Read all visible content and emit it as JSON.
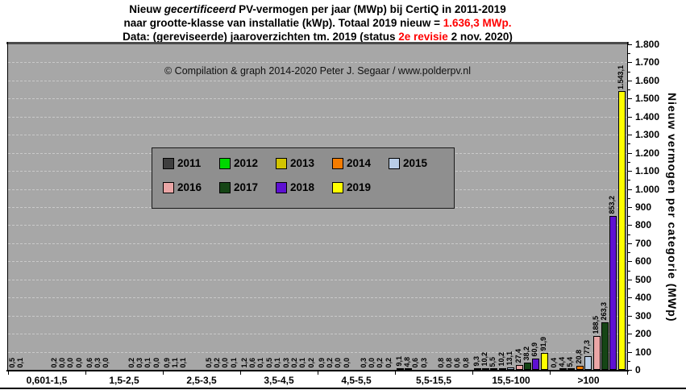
{
  "title": {
    "line1_pre": "Nieuw ",
    "line1_italic": "gecertificeerd",
    "line1_post": " PV-vermogen per jaar (MWp) bij CertiQ in 2011-2019",
    "line2_pre": "naar grootte-klasse van installatie (kWp). Totaal 2019 nieuw = ",
    "line2_red": "1.636,3 MWp.",
    "line3_pre": "Data: (gereviseerde) jaaroverzichten tm. 2019 (status ",
    "line3_red": "2e revisie",
    "line3_post": " 2 nov. 2020)"
  },
  "copyright": "© Compilation  & graph 2014-2020 Peter J. Segaar / www.polderpv.nl",
  "chart_data": {
    "type": "bar",
    "title": "Nieuw gecertificeerd PV-vermogen per jaar (MWp) bij CertiQ in 2011-2019 naar grootte-klasse van installatie (kWp)",
    "categories": [
      "0,601-1,5",
      "1,5-2,5",
      "2,5-3,5",
      "3,5-4,5",
      "4,5-5,5",
      "5,5-15,5",
      "15,5-100",
      ">100"
    ],
    "xlabel": "",
    "ylabel": "Nieuw vermogen per categorie (MWp)",
    "ylim": [
      0,
      1800
    ],
    "ytick_step": 100,
    "ytick_labels": [
      "0",
      "100",
      "200",
      "300",
      "400",
      "500",
      "600",
      "700",
      "800",
      "900",
      "1.000",
      "1.100",
      "1.200",
      "1.300",
      "1.400",
      "1.500",
      "1.600",
      "1.700",
      "1.800"
    ],
    "grid": "horizontal dashed every 100 MWp",
    "legend_position": "inside upper-left, boxed, two rows",
    "series": [
      {
        "name": "2011",
        "color": "#3f3f3f",
        "values": [
          0.5,
          0.6,
          0.9,
          1.2,
          0.9,
          9.1,
          9.3,
          0.4
        ],
        "labels": [
          "0,5",
          "0,6",
          "0,9",
          "1,2",
          "0,9",
          "9,1",
          "9,3",
          "0,4"
        ]
      },
      {
        "name": "2012",
        "color": "#00d800",
        "values": [
          0.1,
          0.3,
          1.1,
          0.6,
          0.2,
          4.8,
          10.2,
          4.4
        ],
        "labels": [
          "0,1",
          "0,3",
          "1,1",
          "0,6",
          "0,2",
          "4,8",
          "10,2",
          "4,4"
        ]
      },
      {
        "name": "2013",
        "color": "#d2c400",
        "values": [
          null,
          0.0,
          0.1,
          0.1,
          0.0,
          0.6,
          5.5,
          5.4
        ],
        "labels": [
          null,
          "0,0",
          "0,1",
          "0,1",
          "0,0",
          "0,6",
          "5,5",
          "5,4"
        ]
      },
      {
        "name": "2014",
        "color": "#f57c00",
        "values": [
          null,
          null,
          null,
          0.5,
          0.0,
          0.3,
          10.2,
          20.8
        ],
        "labels": [
          null,
          null,
          null,
          "0,5",
          "0,0",
          "0,3",
          "10,2",
          "20,8"
        ]
      },
      {
        "name": "2015",
        "color": "#b9cde6",
        "values": [
          null,
          null,
          null,
          0.1,
          null,
          null,
          13.1,
          77.3
        ],
        "labels": [
          null,
          null,
          null,
          "0,1",
          null,
          null,
          "13,1",
          "77,3"
        ]
      },
      {
        "name": "2016",
        "color": "#eba6a6",
        "values": [
          0.2,
          0.2,
          0.5,
          0.3,
          0.3,
          0.8,
          27.4,
          188.5
        ],
        "labels": [
          "0,2",
          "0,2",
          "0,5",
          "0,3",
          "0,3",
          "0,8",
          "27,4",
          "188,5"
        ]
      },
      {
        "name": "2017",
        "color": "#154515",
        "values": [
          0.0,
          0.3,
          0.2,
          0.2,
          0.0,
          0.8,
          38.2,
          263.3
        ],
        "labels": [
          "0,0",
          "0,3",
          "0,2",
          "0,2",
          "0,0",
          "0,8",
          "38,2",
          "263,3"
        ]
      },
      {
        "name": "2018",
        "color": "#5e10d2",
        "values": [
          0.0,
          0.1,
          0.0,
          0.1,
          0.2,
          0.6,
          60.9,
          853.2
        ],
        "labels": [
          "0,0",
          "0,1",
          "0,0",
          "0,1",
          "0,2",
          "0,6",
          "60,9",
          "853,2"
        ]
      },
      {
        "name": "2019",
        "color": "#ffff00",
        "values": [
          0.0,
          0.0,
          0.1,
          0.2,
          0.2,
          0.8,
          91.9,
          1543.1
        ],
        "labels": [
          "0,0",
          "0,0",
          "0,1",
          "0,2",
          "0,2",
          "0,8",
          "91,9",
          "1.543,1"
        ]
      }
    ]
  }
}
